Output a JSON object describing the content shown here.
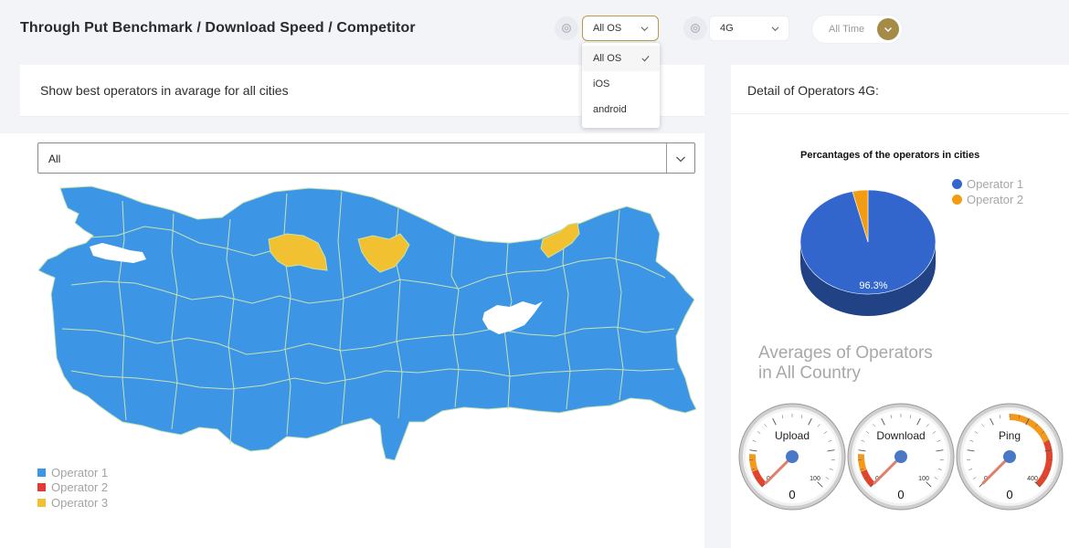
{
  "header": {
    "title": "Through Put Benchmark / Download Speed / Competitor",
    "os_select_value": "All OS",
    "network_select_value": "4G",
    "time_toggle_label": "All Time"
  },
  "os_dropdown": {
    "options": [
      "All OS",
      "iOS",
      "android"
    ],
    "selected": "All OS"
  },
  "left_panel": {
    "title": "Show best operators in avarage for all cities",
    "city_select_value": "All",
    "map_legend": [
      {
        "label": "Operator 1",
        "color": "#3d95e6"
      },
      {
        "label": "Operator 2",
        "color": "#e53935"
      },
      {
        "label": "Operator 3",
        "color": "#f2c131"
      }
    ]
  },
  "right_panel": {
    "title": "Detail of Operators 4G:",
    "averages_title_line1": "Averages of Operators",
    "averages_title_line2": "in All Country"
  },
  "chart_data": {
    "type": "pie",
    "title": "Percantages of the operators in cities",
    "series": [
      {
        "name": "Operator 1",
        "value": 96.3,
        "color": "#3366cc"
      },
      {
        "name": "Operator 2",
        "value": 3.7,
        "color": "#f39c12"
      }
    ],
    "data_labels": [
      "96.3%"
    ],
    "legend_position": "right",
    "three_d": true
  },
  "gauges": [
    {
      "label": "Upload",
      "value": 0,
      "min": 0,
      "max": 100,
      "min_label": "0",
      "max_label": "100",
      "value_label": "0"
    },
    {
      "label": "Download",
      "value": 0,
      "min": 0,
      "max": 100,
      "min_label": "0",
      "max_label": "100",
      "value_label": "0"
    },
    {
      "label": "Ping",
      "value": 0,
      "min": 0,
      "max": 400,
      "min_label": "0",
      "max_label": "400",
      "value_label": "0"
    }
  ],
  "colors": {
    "accent": "#a58a48",
    "map_operator1": "#3d95e6",
    "map_operator3": "#f2c131",
    "gauge_red": "#e3452c",
    "gauge_orange": "#f39a1e",
    "gauge_needle": "#e0806a",
    "gauge_hub": "#4a78c8"
  }
}
